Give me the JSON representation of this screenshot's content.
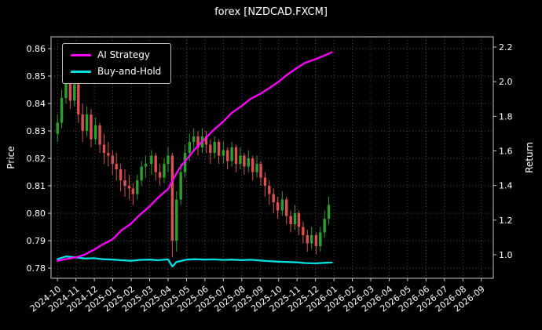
{
  "title": "forex [NZDCAD.FXCM]",
  "axes": {
    "price_label": "Price",
    "return_label": "Return"
  },
  "legend": {
    "ai_label": "AI Strategy",
    "bh_label": "Buy-and-Hold"
  },
  "colors": {
    "ai_strategy": "#ff00ff",
    "buy_and_hold": "#00e0e0",
    "candle_up": "#2aa12a",
    "candle_down": "#dd5050",
    "grid": "#5a5a5a",
    "axis": "#c8c8c8",
    "text": "#ffffff",
    "background": "#000000"
  },
  "chart_data": {
    "type": "candlestick+line",
    "title": "forex [NZDCAD.FXCM]",
    "xlabel": "",
    "ylabel_left": "Price",
    "ylabel_right": "Return",
    "x_ticks": [
      "2024-10",
      "2024-11",
      "2024-12",
      "2025-01",
      "2025-02",
      "2025-03",
      "2025-04",
      "2025-05",
      "2025-06",
      "2025-07",
      "2025-08",
      "2025-09",
      "2025-10",
      "2025-11",
      "2025-12",
      "2026-01",
      "2026-02",
      "2026-03",
      "2026-04",
      "2026-05",
      "2026-06",
      "2026-07",
      "2026-08",
      "2026-09"
    ],
    "price_ticks": [
      0.78,
      0.79,
      0.8,
      0.81,
      0.82,
      0.83,
      0.84,
      0.85,
      0.86
    ],
    "return_ticks": [
      1.0,
      1.2,
      1.4,
      1.6,
      1.8,
      2.0,
      2.2
    ],
    "ylim_price": [
      0.7763,
      0.8643
    ],
    "ylim_return": [
      0.864,
      2.259
    ],
    "xlim_months": [
      -0.35,
      23.65
    ],
    "grid": "dotted",
    "legend_position": "upper-left",
    "price_candles": {
      "columns": [
        "date",
        "open",
        "high",
        "low",
        "close"
      ],
      "rows": [
        [
          "2024-10-01",
          0.829,
          0.836,
          0.826,
          0.833
        ],
        [
          "2024-10-08",
          0.833,
          0.845,
          0.831,
          0.842
        ],
        [
          "2024-10-15",
          0.842,
          0.855,
          0.84,
          0.851
        ],
        [
          "2024-10-22",
          0.851,
          0.854,
          0.838,
          0.841
        ],
        [
          "2024-10-29",
          0.841,
          0.852,
          0.839,
          0.847
        ],
        [
          "2024-11-05",
          0.847,
          0.849,
          0.833,
          0.836
        ],
        [
          "2024-11-12",
          0.836,
          0.84,
          0.826,
          0.83
        ],
        [
          "2024-11-19",
          0.83,
          0.839,
          0.828,
          0.836
        ],
        [
          "2024-11-26",
          0.836,
          0.838,
          0.824,
          0.827
        ],
        [
          "2024-12-03",
          0.827,
          0.835,
          0.825,
          0.832
        ],
        [
          "2024-12-10",
          0.832,
          0.833,
          0.822,
          0.825
        ],
        [
          "2024-12-17",
          0.825,
          0.829,
          0.818,
          0.822
        ],
        [
          "2024-12-24",
          0.822,
          0.826,
          0.817,
          0.821
        ],
        [
          "2024-12-31",
          0.821,
          0.823,
          0.814,
          0.818
        ],
        [
          "2025-01-07",
          0.818,
          0.822,
          0.812,
          0.816
        ],
        [
          "2025-01-14",
          0.816,
          0.818,
          0.808,
          0.812
        ],
        [
          "2025-01-21",
          0.812,
          0.816,
          0.806,
          0.81
        ],
        [
          "2025-01-28",
          0.81,
          0.814,
          0.805,
          0.809
        ],
        [
          "2025-02-04",
          0.809,
          0.811,
          0.803,
          0.807
        ],
        [
          "2025-02-11",
          0.807,
          0.814,
          0.805,
          0.812
        ],
        [
          "2025-02-18",
          0.812,
          0.819,
          0.81,
          0.817
        ],
        [
          "2025-02-25",
          0.817,
          0.821,
          0.813,
          0.818
        ],
        [
          "2025-03-04",
          0.818,
          0.823,
          0.814,
          0.821
        ],
        [
          "2025-03-11",
          0.821,
          0.822,
          0.812,
          0.815
        ],
        [
          "2025-03-18",
          0.815,
          0.818,
          0.81,
          0.813
        ],
        [
          "2025-03-25",
          0.813,
          0.82,
          0.811,
          0.818
        ],
        [
          "2025-04-01",
          0.818,
          0.824,
          0.815,
          0.821
        ],
        [
          "2025-04-08",
          0.821,
          0.822,
          0.784,
          0.79
        ],
        [
          "2025-04-15",
          0.79,
          0.808,
          0.786,
          0.805
        ],
        [
          "2025-04-22",
          0.805,
          0.818,
          0.803,
          0.815
        ],
        [
          "2025-04-29",
          0.815,
          0.825,
          0.813,
          0.822
        ],
        [
          "2025-05-06",
          0.822,
          0.829,
          0.819,
          0.826
        ],
        [
          "2025-05-13",
          0.826,
          0.831,
          0.823,
          0.828
        ],
        [
          "2025-05-20",
          0.828,
          0.83,
          0.821,
          0.824
        ],
        [
          "2025-05-27",
          0.824,
          0.831,
          0.822,
          0.828
        ],
        [
          "2025-06-03",
          0.828,
          0.83,
          0.822,
          0.825
        ],
        [
          "2025-06-10",
          0.825,
          0.827,
          0.818,
          0.822
        ],
        [
          "2025-06-17",
          0.822,
          0.828,
          0.82,
          0.826
        ],
        [
          "2025-06-24",
          0.826,
          0.827,
          0.818,
          0.821
        ],
        [
          "2025-07-01",
          0.821,
          0.826,
          0.818,
          0.823
        ],
        [
          "2025-07-08",
          0.823,
          0.824,
          0.816,
          0.819
        ],
        [
          "2025-07-15",
          0.819,
          0.826,
          0.817,
          0.824
        ],
        [
          "2025-07-22",
          0.824,
          0.825,
          0.815,
          0.818
        ],
        [
          "2025-07-29",
          0.818,
          0.824,
          0.816,
          0.821
        ],
        [
          "2025-08-05",
          0.821,
          0.822,
          0.814,
          0.817
        ],
        [
          "2025-08-12",
          0.817,
          0.823,
          0.815,
          0.82
        ],
        [
          "2025-08-19",
          0.82,
          0.821,
          0.812,
          0.815
        ],
        [
          "2025-08-26",
          0.815,
          0.821,
          0.813,
          0.818
        ],
        [
          "2025-09-02",
          0.818,
          0.819,
          0.81,
          0.813
        ],
        [
          "2025-09-09",
          0.813,
          0.815,
          0.806,
          0.81
        ],
        [
          "2025-09-16",
          0.81,
          0.812,
          0.803,
          0.807
        ],
        [
          "2025-09-23",
          0.807,
          0.809,
          0.8,
          0.804
        ],
        [
          "2025-09-30",
          0.804,
          0.806,
          0.798,
          0.801
        ],
        [
          "2025-10-07",
          0.801,
          0.808,
          0.799,
          0.805
        ],
        [
          "2025-10-14",
          0.805,
          0.806,
          0.796,
          0.799
        ],
        [
          "2025-10-21",
          0.799,
          0.801,
          0.793,
          0.796
        ],
        [
          "2025-10-28",
          0.796,
          0.803,
          0.794,
          0.8
        ],
        [
          "2025-11-04",
          0.8,
          0.801,
          0.792,
          0.795
        ],
        [
          "2025-11-11",
          0.795,
          0.797,
          0.789,
          0.792
        ],
        [
          "2025-11-18",
          0.792,
          0.794,
          0.786,
          0.789
        ],
        [
          "2025-11-25",
          0.789,
          0.795,
          0.787,
          0.792
        ],
        [
          "2025-12-02",
          0.792,
          0.793,
          0.785,
          0.788
        ],
        [
          "2025-12-09",
          0.788,
          0.795,
          0.786,
          0.793
        ],
        [
          "2025-12-16",
          0.793,
          0.801,
          0.791,
          0.798
        ],
        [
          "2025-12-23",
          0.798,
          0.806,
          0.796,
          0.803
        ]
      ]
    },
    "series": [
      {
        "name": "AI Strategy",
        "axis": "return",
        "color": "#ff00ff",
        "points": [
          [
            "2024-10-01",
            0.965
          ],
          [
            "2024-10-15",
            0.975
          ],
          [
            "2024-11-01",
            0.985
          ],
          [
            "2024-11-15",
            1.0
          ],
          [
            "2024-12-01",
            1.03
          ],
          [
            "2024-12-15",
            1.06
          ],
          [
            "2025-01-01",
            1.09
          ],
          [
            "2025-01-15",
            1.14
          ],
          [
            "2025-02-01",
            1.18
          ],
          [
            "2025-02-15",
            1.23
          ],
          [
            "2025-03-01",
            1.28
          ],
          [
            "2025-03-15",
            1.33
          ],
          [
            "2025-04-01",
            1.38
          ],
          [
            "2025-04-10",
            1.44
          ],
          [
            "2025-04-20",
            1.5
          ],
          [
            "2025-05-01",
            1.55
          ],
          [
            "2025-05-15",
            1.61
          ],
          [
            "2025-06-01",
            1.67
          ],
          [
            "2025-06-15",
            1.72
          ],
          [
            "2025-07-01",
            1.77
          ],
          [
            "2025-07-15",
            1.82
          ],
          [
            "2025-08-01",
            1.86
          ],
          [
            "2025-08-15",
            1.9
          ],
          [
            "2025-09-01",
            1.93
          ],
          [
            "2025-09-15",
            1.96
          ],
          [
            "2025-10-01",
            2.0
          ],
          [
            "2025-10-15",
            2.04
          ],
          [
            "2025-11-01",
            2.08
          ],
          [
            "2025-11-15",
            2.11
          ],
          [
            "2025-12-01",
            2.13
          ],
          [
            "2025-12-15",
            2.15
          ],
          [
            "2025-12-28",
            2.17
          ]
        ]
      },
      {
        "name": "Buy-and-Hold",
        "axis": "return",
        "color": "#00e0e0",
        "points": [
          [
            "2024-10-01",
            0.975
          ],
          [
            "2024-10-15",
            0.99
          ],
          [
            "2024-11-01",
            0.985
          ],
          [
            "2024-11-15",
            0.978
          ],
          [
            "2024-12-01",
            0.98
          ],
          [
            "2024-12-15",
            0.974
          ],
          [
            "2025-01-01",
            0.972
          ],
          [
            "2025-01-15",
            0.968
          ],
          [
            "2025-02-01",
            0.965
          ],
          [
            "2025-02-15",
            0.97
          ],
          [
            "2025-03-01",
            0.972
          ],
          [
            "2025-03-15",
            0.968
          ],
          [
            "2025-04-01",
            0.973
          ],
          [
            "2025-04-08",
            0.932
          ],
          [
            "2025-04-15",
            0.958
          ],
          [
            "2025-05-01",
            0.972
          ],
          [
            "2025-05-15",
            0.974
          ],
          [
            "2025-06-01",
            0.972
          ],
          [
            "2025-06-15",
            0.973
          ],
          [
            "2025-07-01",
            0.97
          ],
          [
            "2025-07-15",
            0.972
          ],
          [
            "2025-08-01",
            0.969
          ],
          [
            "2025-08-15",
            0.971
          ],
          [
            "2025-09-01",
            0.967
          ],
          [
            "2025-09-15",
            0.963
          ],
          [
            "2025-10-01",
            0.96
          ],
          [
            "2025-10-15",
            0.958
          ],
          [
            "2025-11-01",
            0.956
          ],
          [
            "2025-11-15",
            0.952
          ],
          [
            "2025-12-01",
            0.95
          ],
          [
            "2025-12-15",
            0.953
          ],
          [
            "2025-12-28",
            0.955
          ]
        ]
      }
    ]
  }
}
